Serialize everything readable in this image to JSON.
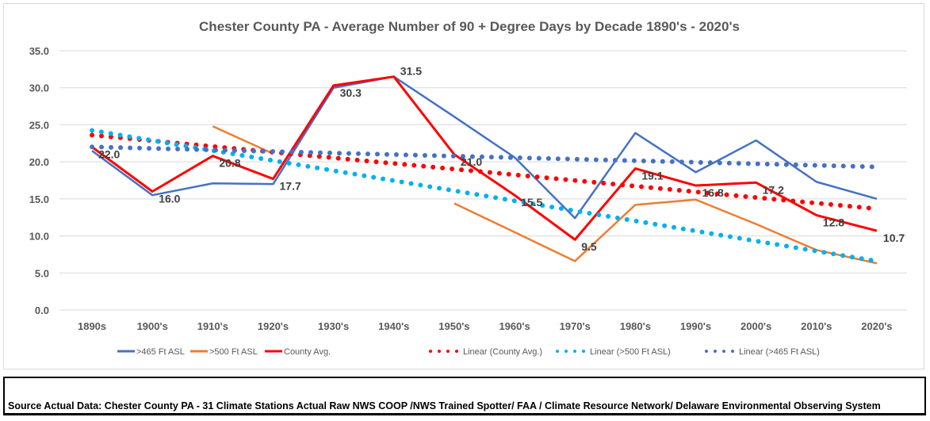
{
  "chart_data": {
    "type": "line",
    "title": "Chester County PA - Average Number of 90 + Degree Days by Decade 1890's - 2020's",
    "xlabel": "",
    "ylabel": "",
    "ylim": [
      0,
      35
    ],
    "yticks": [
      "0.0",
      "5.0",
      "10.0",
      "15.0",
      "20.0",
      "25.0",
      "30.0",
      "35.0"
    ],
    "grid": true,
    "legend_position": "bottom",
    "categories": [
      "1890s",
      "1900's",
      "1910's",
      "1920's",
      "1930's",
      "1940's",
      "1950's",
      "1960's",
      "1970's",
      "1980's",
      "1990's",
      "2000's",
      "2010's",
      "2020's"
    ],
    "series": [
      {
        "name": ">465 Ft ASL",
        "color": "#4472C4",
        "values": [
          21.5,
          15.5,
          17.1,
          17.0,
          30.0,
          31.5,
          26.1,
          20.6,
          12.4,
          23.9,
          18.6,
          22.9,
          17.3,
          15.0
        ]
      },
      {
        "name": ">500 Ft ASL",
        "color": "#ED7D31",
        "values": [
          null,
          null,
          24.8,
          21.1,
          null,
          null,
          14.4,
          10.5,
          6.6,
          14.2,
          14.9,
          11.6,
          8.1,
          6.3
        ]
      },
      {
        "name": "County Avg.",
        "color": "#FF0000",
        "values": [
          22.0,
          16.0,
          20.8,
          17.7,
          30.3,
          31.5,
          21.0,
          15.5,
          9.5,
          19.1,
          16.8,
          17.2,
          12.8,
          10.7
        ],
        "data_labels": [
          "22.0",
          "16.0",
          "20.8",
          "17.7",
          "30.3",
          "31.5",
          "21.0",
          "15.5",
          "9.5",
          "19.1",
          "16.8",
          "17.2",
          "12.8",
          "10.7"
        ]
      }
    ],
    "trendlines": [
      {
        "name": "Linear (County Avg.)",
        "of": 2,
        "color": "#FF0000"
      },
      {
        "name": "Linear (>500 Ft ASL)",
        "of": 1,
        "color": "#00B0F0"
      },
      {
        "name": "Linear (>465 Ft ASL)",
        "of": 0,
        "color": "#4472C4"
      }
    ]
  },
  "source": "Source Actual Data: Chester County PA - 31 Climate Stations Actual Raw NWS COOP /NWS Trained Spotter/ FAA / Climate Resource Network/ Delaware Environmental Observing System"
}
